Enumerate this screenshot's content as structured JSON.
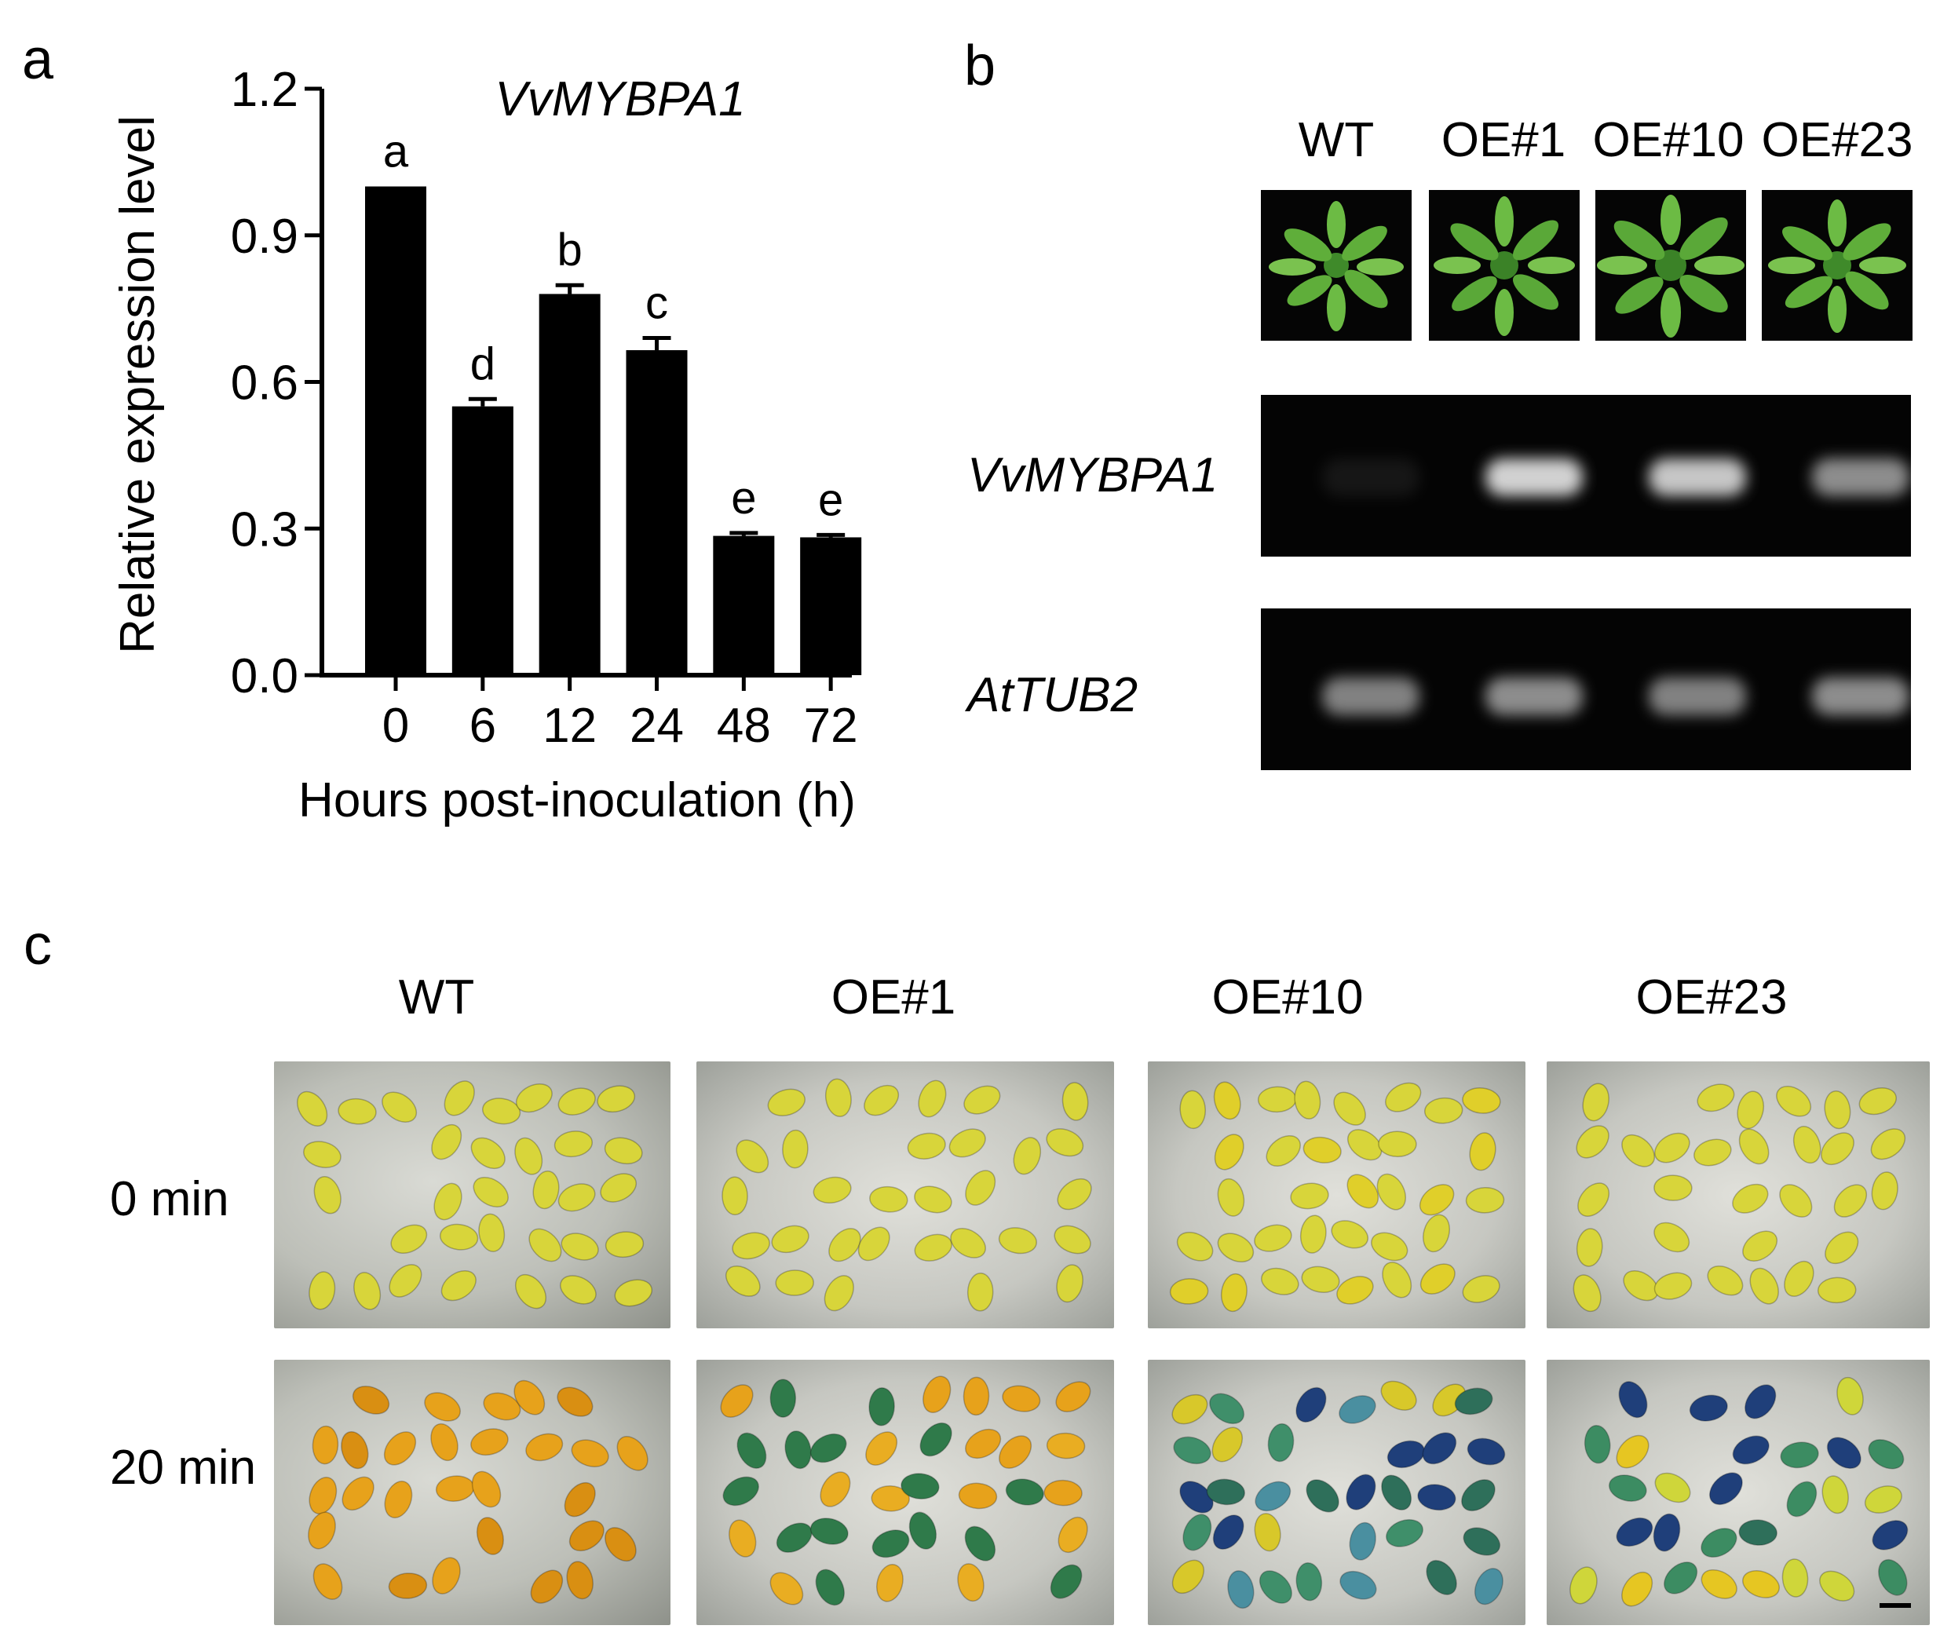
{
  "panels": {
    "a": "a",
    "b": "b",
    "c": "c"
  },
  "panel_a": {
    "gene_title": "VvMYBPA1",
    "significance_letters": [
      "a",
      "d",
      "b",
      "c",
      "e",
      "e"
    ]
  },
  "panel_b": {
    "lines": [
      "WT",
      "OE#1",
      "OE#10",
      "OE#23"
    ],
    "gel_rows": [
      "VvMYBPA1",
      "AtTUB2"
    ],
    "band_intensity": {
      "VvMYBPA1": [
        0.08,
        0.9,
        0.85,
        0.6
      ],
      "AtTUB2": [
        0.55,
        0.6,
        0.55,
        0.6
      ]
    },
    "colors": {
      "plant_green": "#5fae3a",
      "gel_band": "#e8e8e8"
    }
  },
  "panel_c": {
    "lines": [
      "WT",
      "OE#1",
      "OE#10",
      "OE#23"
    ],
    "times": [
      "0 min",
      "20 min"
    ],
    "colors": {
      "seed_yellow": "#d8d53a",
      "seed_orange": "#e7a21b",
      "seed_blue_green": "#2e6f5a",
      "seed_dark_blue": "#1f3f7a"
    }
  },
  "chart_data": {
    "type": "bar",
    "title": "VvMYBPA1",
    "categories": [
      "0",
      "6",
      "12",
      "24",
      "48",
      "72"
    ],
    "values": [
      1.0,
      0.55,
      0.78,
      0.665,
      0.285,
      0.282
    ],
    "errors": [
      0.0,
      0.015,
      0.018,
      0.025,
      0.006,
      0.005
    ],
    "xlabel": "Hours post-inoculation (h)",
    "ylabel": "Relative expression level",
    "ylim": [
      0,
      1.2
    ],
    "yticks": [
      "0.0",
      "0.3",
      "0.6",
      "0.9",
      "1.2"
    ],
    "ytick_values": [
      0,
      0.3,
      0.6,
      0.9,
      1.2
    ],
    "grid": false,
    "bar_color": "#000000"
  }
}
